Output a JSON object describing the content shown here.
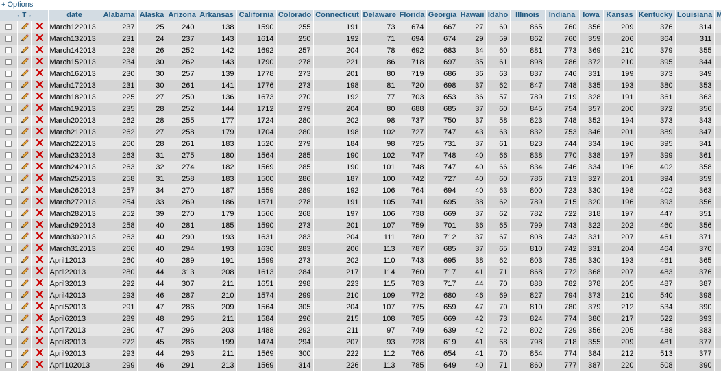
{
  "options_link": "Options",
  "header_arrows": "←T→",
  "columns": [
    "date",
    "Alabama",
    "Alaska",
    "Arizona",
    "Arkansas",
    "California",
    "Colorado",
    "Connecticut",
    "Delaware",
    "Florida",
    "Georgia",
    "Hawaii",
    "Idaho",
    "Illinois",
    "Indiana",
    "Iowa",
    "Kansas",
    "Kentucky",
    "Louisiana",
    "Ma"
  ],
  "rows": [
    [
      "March122013",
      "237",
      "25",
      "240",
      "138",
      "1590",
      "255",
      "191",
      "73",
      "674",
      "667",
      "27",
      "60",
      "865",
      "760",
      "356",
      "209",
      "376",
      "314"
    ],
    [
      "March132013",
      "231",
      "24",
      "237",
      "143",
      "1614",
      "250",
      "192",
      "71",
      "694",
      "674",
      "29",
      "59",
      "862",
      "760",
      "359",
      "206",
      "364",
      "311"
    ],
    [
      "March142013",
      "228",
      "26",
      "252",
      "142",
      "1692",
      "257",
      "204",
      "78",
      "692",
      "683",
      "34",
      "60",
      "881",
      "773",
      "369",
      "210",
      "379",
      "355"
    ],
    [
      "March152013",
      "234",
      "30",
      "262",
      "143",
      "1790",
      "278",
      "221",
      "86",
      "718",
      "697",
      "35",
      "61",
      "898",
      "786",
      "372",
      "210",
      "395",
      "344"
    ],
    [
      "March162013",
      "230",
      "30",
      "257",
      "139",
      "1778",
      "273",
      "201",
      "80",
      "719",
      "686",
      "36",
      "63",
      "837",
      "746",
      "331",
      "199",
      "373",
      "349"
    ],
    [
      "March172013",
      "231",
      "30",
      "261",
      "141",
      "1776",
      "273",
      "198",
      "81",
      "720",
      "698",
      "37",
      "62",
      "847",
      "748",
      "335",
      "193",
      "380",
      "353"
    ],
    [
      "March182013",
      "225",
      "27",
      "250",
      "136",
      "1673",
      "270",
      "192",
      "77",
      "703",
      "653",
      "36",
      "57",
      "789",
      "719",
      "328",
      "191",
      "361",
      "363"
    ],
    [
      "March192013",
      "235",
      "28",
      "252",
      "144",
      "1712",
      "279",
      "204",
      "80",
      "688",
      "685",
      "37",
      "60",
      "845",
      "754",
      "357",
      "200",
      "372",
      "356"
    ],
    [
      "March202013",
      "262",
      "28",
      "255",
      "177",
      "1724",
      "280",
      "202",
      "98",
      "737",
      "750",
      "37",
      "58",
      "823",
      "748",
      "352",
      "194",
      "373",
      "343"
    ],
    [
      "March212013",
      "262",
      "27",
      "258",
      "179",
      "1704",
      "280",
      "198",
      "102",
      "727",
      "747",
      "43",
      "63",
      "832",
      "753",
      "346",
      "201",
      "389",
      "347"
    ],
    [
      "March222013",
      "260",
      "28",
      "261",
      "183",
      "1520",
      "279",
      "184",
      "98",
      "725",
      "731",
      "37",
      "61",
      "823",
      "744",
      "334",
      "196",
      "395",
      "341"
    ],
    [
      "March232013",
      "263",
      "31",
      "275",
      "180",
      "1564",
      "285",
      "190",
      "102",
      "747",
      "748",
      "40",
      "66",
      "838",
      "770",
      "338",
      "197",
      "399",
      "361"
    ],
    [
      "March242013",
      "263",
      "32",
      "274",
      "182",
      "1569",
      "285",
      "190",
      "101",
      "748",
      "747",
      "40",
      "66",
      "834",
      "746",
      "334",
      "196",
      "402",
      "358"
    ],
    [
      "March252013",
      "258",
      "31",
      "258",
      "183",
      "1500",
      "286",
      "187",
      "100",
      "742",
      "727",
      "40",
      "60",
      "786",
      "713",
      "327",
      "201",
      "394",
      "359"
    ],
    [
      "March262013",
      "257",
      "34",
      "270",
      "187",
      "1559",
      "289",
      "192",
      "106",
      "764",
      "694",
      "40",
      "63",
      "800",
      "723",
      "330",
      "198",
      "402",
      "363"
    ],
    [
      "March272013",
      "254",
      "33",
      "269",
      "186",
      "1571",
      "278",
      "191",
      "105",
      "741",
      "695",
      "38",
      "62",
      "789",
      "715",
      "320",
      "196",
      "393",
      "356"
    ],
    [
      "March282013",
      "252",
      "39",
      "270",
      "179",
      "1566",
      "268",
      "197",
      "106",
      "738",
      "669",
      "37",
      "62",
      "782",
      "722",
      "318",
      "197",
      "447",
      "351"
    ],
    [
      "March292013",
      "258",
      "40",
      "281",
      "185",
      "1590",
      "273",
      "201",
      "107",
      "759",
      "701",
      "36",
      "65",
      "799",
      "743",
      "322",
      "202",
      "460",
      "356"
    ],
    [
      "March302013",
      "263",
      "40",
      "290",
      "193",
      "1631",
      "283",
      "204",
      "111",
      "780",
      "712",
      "37",
      "67",
      "808",
      "743",
      "331",
      "207",
      "461",
      "371"
    ],
    [
      "March312013",
      "266",
      "40",
      "294",
      "193",
      "1630",
      "283",
      "206",
      "113",
      "787",
      "685",
      "37",
      "65",
      "810",
      "742",
      "331",
      "204",
      "464",
      "370"
    ],
    [
      "April12013",
      "260",
      "40",
      "289",
      "191",
      "1599",
      "273",
      "202",
      "110",
      "743",
      "695",
      "38",
      "62",
      "803",
      "735",
      "330",
      "193",
      "461",
      "365"
    ],
    [
      "April22013",
      "280",
      "44",
      "313",
      "208",
      "1613",
      "284",
      "217",
      "114",
      "760",
      "717",
      "41",
      "71",
      "868",
      "772",
      "368",
      "207",
      "483",
      "376"
    ],
    [
      "April32013",
      "292",
      "44",
      "307",
      "211",
      "1651",
      "298",
      "223",
      "115",
      "783",
      "717",
      "44",
      "70",
      "888",
      "782",
      "378",
      "205",
      "487",
      "387"
    ],
    [
      "April42013",
      "293",
      "46",
      "287",
      "210",
      "1574",
      "299",
      "210",
      "109",
      "772",
      "680",
      "46",
      "69",
      "827",
      "794",
      "373",
      "210",
      "540",
      "398"
    ],
    [
      "April52013",
      "291",
      "47",
      "286",
      "209",
      "1564",
      "305",
      "204",
      "107",
      "775",
      "659",
      "47",
      "70",
      "810",
      "780",
      "379",
      "212",
      "534",
      "390"
    ],
    [
      "April62013",
      "289",
      "48",
      "296",
      "211",
      "1584",
      "296",
      "215",
      "108",
      "785",
      "669",
      "42",
      "73",
      "824",
      "774",
      "380",
      "217",
      "522",
      "393"
    ],
    [
      "April72013",
      "280",
      "47",
      "296",
      "203",
      "1488",
      "292",
      "211",
      "97",
      "749",
      "639",
      "42",
      "72",
      "802",
      "729",
      "356",
      "205",
      "488",
      "383"
    ],
    [
      "April82013",
      "272",
      "45",
      "286",
      "199",
      "1474",
      "294",
      "207",
      "93",
      "728",
      "619",
      "41",
      "68",
      "798",
      "718",
      "355",
      "209",
      "481",
      "377"
    ],
    [
      "April92013",
      "293",
      "44",
      "293",
      "211",
      "1569",
      "300",
      "222",
      "112",
      "766",
      "654",
      "41",
      "70",
      "854",
      "774",
      "384",
      "212",
      "513",
      "377"
    ],
    [
      "April102013",
      "299",
      "46",
      "291",
      "213",
      "1569",
      "314",
      "226",
      "113",
      "785",
      "649",
      "40",
      "71",
      "860",
      "777",
      "387",
      "220",
      "508",
      "390"
    ]
  ],
  "colors": {
    "header_bg": "#d3dce3",
    "header_text": "#235a81",
    "row_odd": "#e5e5e5",
    "row_even": "#d5d5d5",
    "delete_x": "#cc0000"
  },
  "icons": {
    "edit": "pencil-icon",
    "delete": "delete-x-icon",
    "select": "checkbox"
  }
}
